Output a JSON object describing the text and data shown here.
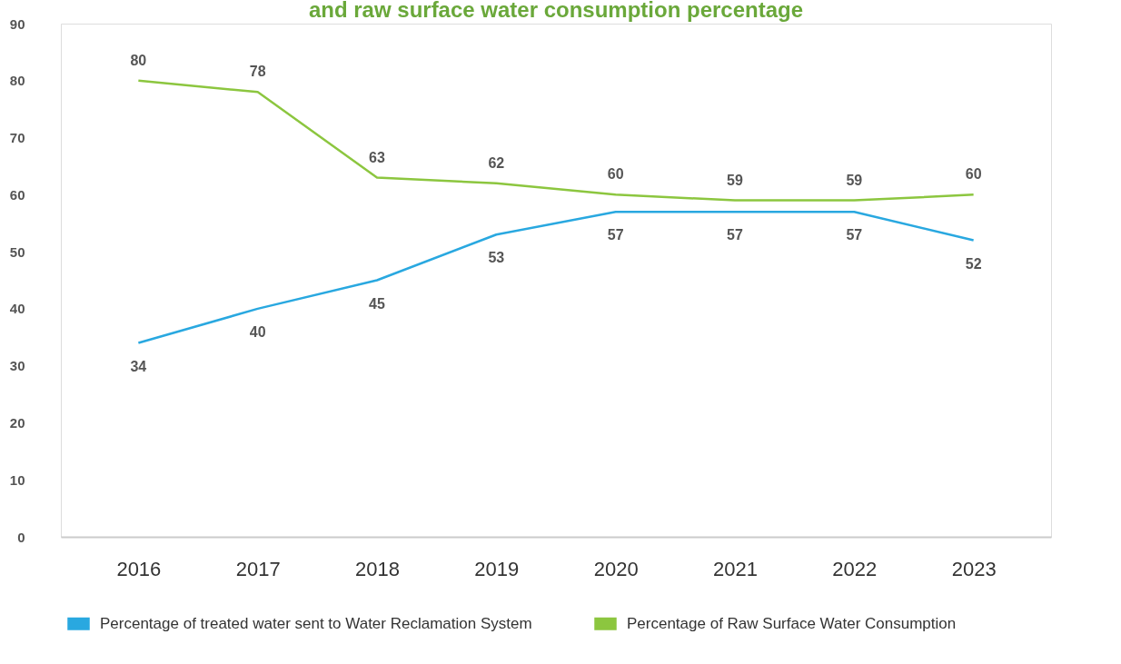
{
  "chart_data": {
    "type": "line",
    "title": "and raw surface water consumption percentage",
    "categories": [
      "2016",
      "2017",
      "2018",
      "2019",
      "2020",
      "2021",
      "2022",
      "2023"
    ],
    "series": [
      {
        "name": "Percentage of treated water sent to Water Reclamation System",
        "color": "#29a8e0",
        "values": [
          34,
          40,
          45,
          53,
          57,
          57,
          57,
          52
        ]
      },
      {
        "name": "Percentage of Raw Surface Water Consumption",
        "color": "#8cc63f",
        "values": [
          80,
          78,
          63,
          62,
          60,
          59,
          59,
          60
        ]
      }
    ],
    "ylim": [
      0,
      90
    ],
    "yticks": [
      0,
      10,
      20,
      30,
      40,
      50,
      60,
      70,
      80,
      90
    ],
    "grid": false,
    "legend": "bottom",
    "data_labels": true,
    "marker": "none",
    "line_style": "solid"
  }
}
